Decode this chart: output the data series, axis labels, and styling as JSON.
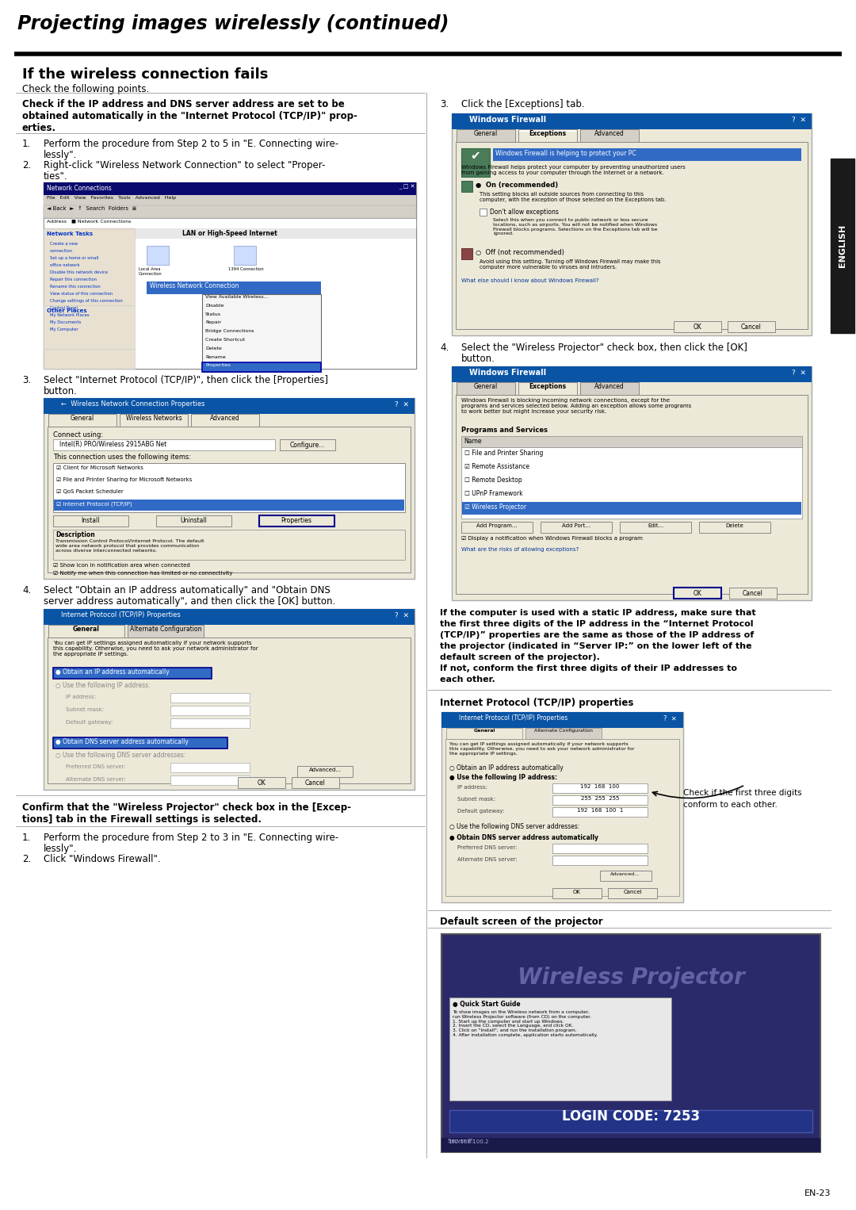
{
  "page_bg": "#ffffff",
  "header_title": "Projecting images wirelessly (continued)",
  "right_tab_text": "ENGLISH",
  "page_number": "EN-23",
  "section_title": "If the wireless connection fails",
  "section_subtitle": "Check the following points.",
  "bold_para1_line1": "Check if the IP address and DNS server address are set to be",
  "bold_para1_line2": "obtained automatically in the \"Internet Protocol (TCP/IP)\" prop-",
  "bold_para1_line3": "erties.",
  "bold_para_confirm_line1": "Confirm that the \"Wireless Projector\" check box in the [Excep-",
  "bold_para_confirm_line2": "tions] tab in the Firewall settings is selected.",
  "bold_static_ip_lines": [
    "If the computer is used with a static IP address, make sure that",
    "the first three digits of the IP address in the “Internet Protocol",
    "(TCP/IP)” properties are the same as those of the IP address of",
    "the projector (indicated in “Server IP:” on the lower left of the",
    "default screen of the projector).",
    "If not, conform the first three digits of their IP addresses to",
    "each other."
  ],
  "internet_protocol_label": "Internet Protocol (TCP/IP) properties",
  "default_screen_label": "Default screen of the projector",
  "check_annotation_line1": "Check if the first three digits",
  "check_annotation_line2": "conform to each other."
}
